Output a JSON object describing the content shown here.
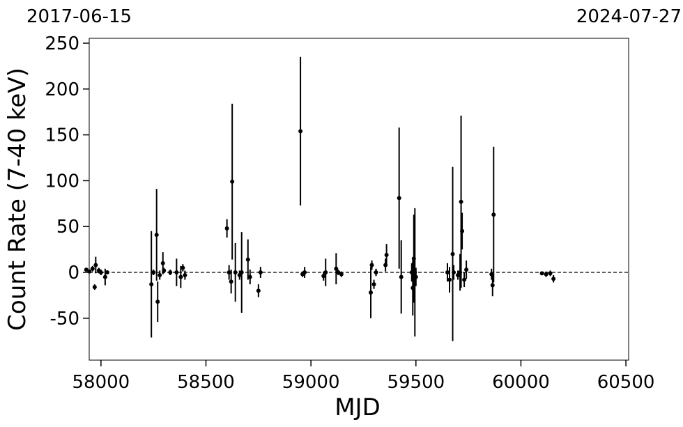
{
  "chart_data": {
    "type": "errorbar",
    "x_label": "MJD",
    "y_label": "Count Rate (7-40 keV)",
    "date_labels": [
      "2017-06-15",
      "2024-07-27"
    ],
    "color": "#000000",
    "hline": 0,
    "xlim": [
      57944,
      60513
    ],
    "ylim": [
      -95.7,
      255.3
    ],
    "xticks": [
      58000,
      58500,
      59000,
      59500,
      60000,
      60500
    ],
    "yticks": [
      -50,
      0,
      50,
      100,
      150,
      200,
      250
    ],
    "x": [
      57930,
      57945,
      57960,
      57970,
      57975,
      57990,
      58000,
      58020,
      58030,
      58240,
      58250,
      58265,
      58270,
      58280,
      58295,
      58300,
      58330,
      58360,
      58380,
      58390,
      58400,
      58600,
      58610,
      58620,
      58625,
      58640,
      58660,
      58670,
      58700,
      58710,
      58750,
      58760,
      58950,
      58960,
      58970,
      59060,
      59070,
      59120,
      59130,
      59145,
      59285,
      59290,
      59300,
      59310,
      59355,
      59360,
      59420,
      59430,
      59480,
      59485,
      59490,
      59495,
      59500,
      59650,
      59660,
      59675,
      59680,
      59700,
      59710,
      59715,
      59720,
      59730,
      59740,
      59860,
      59865,
      59870,
      60100,
      60120,
      60140,
      60155
    ],
    "values": [
      3,
      1,
      4,
      -16,
      8,
      2,
      0,
      -5,
      0,
      -13,
      0,
      41,
      -32,
      -3,
      10,
      2,
      0,
      0,
      -5,
      5,
      -3,
      48,
      0,
      -10,
      99,
      0,
      -3,
      0,
      14,
      -5,
      -20,
      0,
      154,
      -2,
      0,
      -4,
      0,
      4,
      0,
      -2,
      -22,
      8,
      -13,
      0,
      8,
      19,
      81,
      -5,
      0,
      -17,
      15,
      0,
      -5,
      0,
      -8,
      20,
      0,
      -3,
      0,
      77,
      45,
      -8,
      3,
      -2,
      -14,
      63,
      -1,
      -2,
      -1,
      -7
    ],
    "errors": [
      2,
      2,
      3,
      3,
      9,
      3,
      3,
      9,
      2,
      58,
      3,
      50,
      22,
      5,
      12,
      3,
      3,
      15,
      12,
      4,
      5,
      10,
      8,
      13,
      85,
      32,
      5,
      44,
      22,
      8,
      7,
      6,
      81,
      3,
      6,
      5,
      15,
      17,
      3,
      3,
      28,
      5,
      5,
      4,
      7,
      12,
      77,
      40,
      10,
      30,
      48,
      70,
      10,
      10,
      14,
      95,
      8,
      5,
      20,
      94,
      20,
      8,
      10,
      6,
      12,
      74,
      2,
      3,
      3,
      4
    ]
  }
}
